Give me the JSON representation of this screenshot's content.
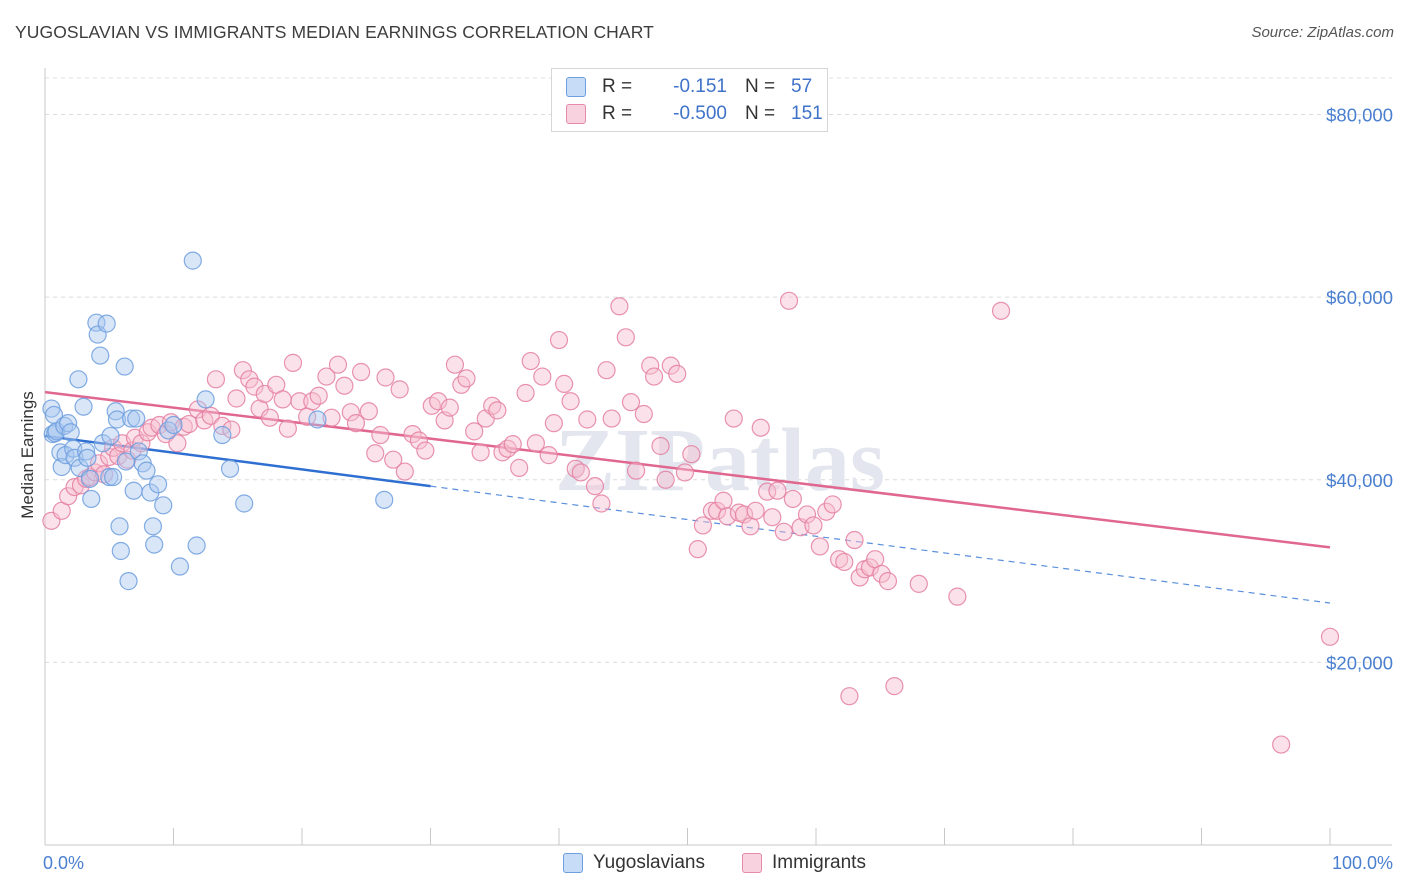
{
  "title": "YUGOSLAVIAN VS IMMIGRANTS MEDIAN EARNINGS CORRELATION CHART",
  "source": "Source: ZipAtlas.com",
  "watermark": "ZIPatlas",
  "legend": {
    "rows": [
      {
        "r_label": "R =",
        "r_value": "-0.151",
        "n_label": "N =",
        "n_value": "57",
        "color": "#a8c8f0",
        "stroke": "#6d9ede"
      },
      {
        "r_label": "R =",
        "r_value": "-0.500",
        "n_label": "N =",
        "n_value": "151",
        "color": "#f6bfd0",
        "stroke": "#e58aa8"
      }
    ]
  },
  "bottom_legend": [
    {
      "label": "Yugoslavians",
      "color": "#a8c8f0"
    },
    {
      "label": "Immigrants",
      "color": "#f6bfd0"
    }
  ],
  "chart_data": {
    "type": "scatter",
    "title": "YUGOSLAVIAN VS IMMIGRANTS MEDIAN EARNINGS CORRELATION CHART",
    "xlabel": "",
    "ylabel": "Median Earnings",
    "xlim": [
      0,
      100
    ],
    "ylim": [
      0,
      84000
    ],
    "x_tick_labels": [
      "0.0%",
      "100.0%"
    ],
    "y_ticks": [
      20000,
      40000,
      60000,
      80000
    ],
    "y_tick_labels": [
      "$20,000",
      "$40,000",
      "$60,000",
      "$80,000"
    ],
    "grid": true,
    "series": [
      {
        "name": "Yugoslavians",
        "color": "#6d9ede",
        "fill": "#a8c8f0",
        "trend": {
          "x0": 0,
          "y0": 44800,
          "x1": 30,
          "y1": 39300,
          "dash_to": 100,
          "dash_y": 26500
        },
        "points": [
          [
            0.5,
            47800
          ],
          [
            0.6,
            45000
          ],
          [
            0.7,
            47100
          ],
          [
            0.8,
            45100
          ],
          [
            0.9,
            45300
          ],
          [
            1.2,
            43000
          ],
          [
            1.3,
            41400
          ],
          [
            1.5,
            45900
          ],
          [
            1.6,
            42700
          ],
          [
            1.8,
            46200
          ],
          [
            2.0,
            45200
          ],
          [
            2.2,
            43400
          ],
          [
            2.3,
            42400
          ],
          [
            2.6,
            51000
          ],
          [
            2.7,
            41300
          ],
          [
            3.0,
            48000
          ],
          [
            3.2,
            43100
          ],
          [
            3.3,
            42400
          ],
          [
            3.5,
            40100
          ],
          [
            3.6,
            37900
          ],
          [
            4.0,
            57200
          ],
          [
            4.1,
            55900
          ],
          [
            4.3,
            53600
          ],
          [
            4.5,
            44000
          ],
          [
            4.8,
            57100
          ],
          [
            5.0,
            40300
          ],
          [
            5.1,
            44800
          ],
          [
            5.3,
            40300
          ],
          [
            5.5,
            47500
          ],
          [
            5.6,
            46600
          ],
          [
            5.8,
            34900
          ],
          [
            5.9,
            32200
          ],
          [
            6.2,
            52400
          ],
          [
            6.3,
            42000
          ],
          [
            6.5,
            28900
          ],
          [
            6.7,
            46700
          ],
          [
            6.9,
            38800
          ],
          [
            7.1,
            46700
          ],
          [
            7.3,
            43100
          ],
          [
            7.6,
            41800
          ],
          [
            7.9,
            41000
          ],
          [
            8.2,
            38600
          ],
          [
            8.4,
            34900
          ],
          [
            8.5,
            32900
          ],
          [
            8.8,
            39500
          ],
          [
            9.2,
            37200
          ],
          [
            9.6,
            45400
          ],
          [
            10.0,
            46000
          ],
          [
            10.5,
            30500
          ],
          [
            11.5,
            64000
          ],
          [
            11.8,
            32800
          ],
          [
            12.5,
            48800
          ],
          [
            13.8,
            44900
          ],
          [
            14.4,
            41200
          ],
          [
            15.5,
            37400
          ],
          [
            21.2,
            46600
          ],
          [
            26.4,
            37800
          ]
        ]
      },
      {
        "name": "Immigrants",
        "color": "#e47fa1",
        "fill": "#f6bfd0",
        "trend": {
          "x0": 0,
          "y0": 49600,
          "x1": 100,
          "y1": 32600
        },
        "points": [
          [
            0.5,
            35500
          ],
          [
            1.3,
            36600
          ],
          [
            1.8,
            38200
          ],
          [
            2.3,
            39200
          ],
          [
            2.8,
            39400
          ],
          [
            3.2,
            40100
          ],
          [
            3.5,
            40300
          ],
          [
            3.9,
            40800
          ],
          [
            4.2,
            41800
          ],
          [
            4.6,
            40600
          ],
          [
            5.0,
            42500
          ],
          [
            5.3,
            43500
          ],
          [
            5.7,
            42600
          ],
          [
            6.0,
            44000
          ],
          [
            6.4,
            42200
          ],
          [
            6.8,
            43200
          ],
          [
            7.0,
            44600
          ],
          [
            7.5,
            44000
          ],
          [
            8.0,
            45200
          ],
          [
            8.3,
            45700
          ],
          [
            8.9,
            46000
          ],
          [
            9.4,
            45000
          ],
          [
            9.8,
            46300
          ],
          [
            10.3,
            44000
          ],
          [
            10.8,
            45800
          ],
          [
            11.2,
            46100
          ],
          [
            11.9,
            47700
          ],
          [
            12.4,
            46500
          ],
          [
            12.9,
            47000
          ],
          [
            13.3,
            51000
          ],
          [
            13.8,
            45900
          ],
          [
            14.5,
            45500
          ],
          [
            14.9,
            48900
          ],
          [
            15.4,
            52000
          ],
          [
            15.9,
            51000
          ],
          [
            16.3,
            50200
          ],
          [
            16.7,
            47800
          ],
          [
            17.1,
            49400
          ],
          [
            17.5,
            46800
          ],
          [
            18.0,
            50400
          ],
          [
            18.5,
            48800
          ],
          [
            18.9,
            45600
          ],
          [
            19.3,
            52800
          ],
          [
            19.8,
            48600
          ],
          [
            20.4,
            46900
          ],
          [
            20.8,
            48600
          ],
          [
            21.3,
            49200
          ],
          [
            21.9,
            51300
          ],
          [
            22.3,
            46800
          ],
          [
            22.8,
            52600
          ],
          [
            23.3,
            50300
          ],
          [
            23.8,
            47400
          ],
          [
            24.2,
            46200
          ],
          [
            24.6,
            51800
          ],
          [
            25.2,
            47500
          ],
          [
            25.7,
            42900
          ],
          [
            26.1,
            44900
          ],
          [
            26.5,
            51200
          ],
          [
            27.1,
            42200
          ],
          [
            27.6,
            49900
          ],
          [
            28.0,
            40900
          ],
          [
            28.6,
            45000
          ],
          [
            29.1,
            44300
          ],
          [
            29.6,
            43200
          ],
          [
            30.1,
            48100
          ],
          [
            30.6,
            48600
          ],
          [
            31.1,
            46500
          ],
          [
            31.5,
            47900
          ],
          [
            31.9,
            52600
          ],
          [
            32.4,
            50400
          ],
          [
            32.8,
            51100
          ],
          [
            33.4,
            45300
          ],
          [
            33.9,
            43000
          ],
          [
            34.3,
            46700
          ],
          [
            34.8,
            48100
          ],
          [
            35.2,
            47600
          ],
          [
            35.6,
            43000
          ],
          [
            36.0,
            43400
          ],
          [
            36.4,
            43900
          ],
          [
            36.9,
            41300
          ],
          [
            37.4,
            49500
          ],
          [
            37.8,
            53000
          ],
          [
            38.2,
            44000
          ],
          [
            38.7,
            51300
          ],
          [
            39.2,
            42700
          ],
          [
            39.6,
            46200
          ],
          [
            40.0,
            55300
          ],
          [
            40.4,
            50500
          ],
          [
            40.9,
            48600
          ],
          [
            41.3,
            41200
          ],
          [
            41.7,
            40800
          ],
          [
            42.2,
            46600
          ],
          [
            42.8,
            39300
          ],
          [
            43.3,
            37400
          ],
          [
            43.7,
            52000
          ],
          [
            44.1,
            46700
          ],
          [
            44.7,
            59000
          ],
          [
            45.2,
            55600
          ],
          [
            45.6,
            48500
          ],
          [
            46.0,
            41000
          ],
          [
            46.6,
            47200
          ],
          [
            47.1,
            52500
          ],
          [
            47.4,
            51300
          ],
          [
            47.9,
            43700
          ],
          [
            48.3,
            40000
          ],
          [
            48.7,
            52500
          ],
          [
            49.2,
            51600
          ],
          [
            49.8,
            40800
          ],
          [
            50.3,
            42800
          ],
          [
            50.8,
            32400
          ],
          [
            51.2,
            35000
          ],
          [
            51.9,
            36600
          ],
          [
            52.3,
            36600
          ],
          [
            52.8,
            37700
          ],
          [
            53.1,
            36000
          ],
          [
            53.6,
            46700
          ],
          [
            54.0,
            36400
          ],
          [
            54.4,
            36200
          ],
          [
            54.9,
            34900
          ],
          [
            55.3,
            36600
          ],
          [
            55.7,
            45700
          ],
          [
            56.2,
            38700
          ],
          [
            56.6,
            35900
          ],
          [
            57.0,
            38800
          ],
          [
            57.5,
            34300
          ],
          [
            57.9,
            59600
          ],
          [
            58.2,
            37900
          ],
          [
            58.8,
            34800
          ],
          [
            59.3,
            36200
          ],
          [
            59.8,
            35000
          ],
          [
            60.3,
            32700
          ],
          [
            60.8,
            36500
          ],
          [
            61.3,
            37300
          ],
          [
            61.8,
            31300
          ],
          [
            62.2,
            31000
          ],
          [
            62.6,
            16300
          ],
          [
            63.0,
            33400
          ],
          [
            63.4,
            29300
          ],
          [
            63.8,
            30200
          ],
          [
            64.2,
            30400
          ],
          [
            64.6,
            31300
          ],
          [
            65.1,
            29700
          ],
          [
            65.6,
            28900
          ],
          [
            66.1,
            17400
          ],
          [
            68.0,
            28600
          ],
          [
            71.0,
            27200
          ],
          [
            74.4,
            58500
          ],
          [
            96.2,
            11000
          ],
          [
            100.0,
            22800
          ]
        ]
      }
    ]
  }
}
